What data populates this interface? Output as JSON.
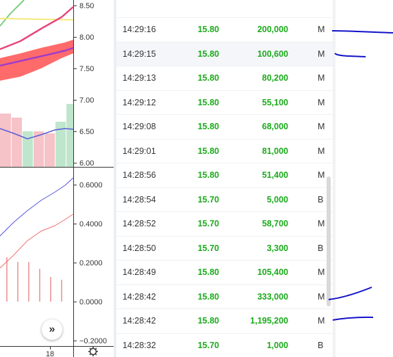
{
  "chart": {
    "price_axis": [
      "8.50",
      "8.00",
      "7.50",
      "7.00",
      "6.50",
      "6.00"
    ],
    "indicator_axis": [
      "0.6000",
      "0.4000",
      "0.2000",
      "0.0000",
      "−0.2000"
    ],
    "time_axis_label": "18",
    "expand_icon": "»",
    "settings_icon": "gear-icon",
    "colors": {
      "green_line": "#7ccd7c",
      "yellow_line": "#f5e87a",
      "pink_line": "#e8457c",
      "purple_line": "#a03cc8",
      "cloud_fill": "#ff6b6b",
      "volume_pink": "#f5c3c8",
      "volume_green": "#bfe6cc",
      "blue_line": "#5a5ad8",
      "macd_line": "#5050e0",
      "signal_line": "#f07070",
      "histogram": "#e05050"
    }
  },
  "trades": [
    {
      "time": "14:29:16",
      "price": "15.80",
      "qty": "200,000",
      "side": "M"
    },
    {
      "time": "14:29:15",
      "price": "15.80",
      "qty": "100,600",
      "side": "M"
    },
    {
      "time": "14:29:13",
      "price": "15.80",
      "qty": "80,200",
      "side": "M"
    },
    {
      "time": "14:29:12",
      "price": "15.80",
      "qty": "55,100",
      "side": "M"
    },
    {
      "time": "14:29:08",
      "price": "15.80",
      "qty": "68,000",
      "side": "M"
    },
    {
      "time": "14:29:01",
      "price": "15.80",
      "qty": "81,000",
      "side": "M"
    },
    {
      "time": "14:28:56",
      "price": "15.80",
      "qty": "51,400",
      "side": "M"
    },
    {
      "time": "14:28:54",
      "price": "15.70",
      "qty": "5,000",
      "side": "B"
    },
    {
      "time": "14:28:52",
      "price": "15.70",
      "qty": "58,700",
      "side": "M"
    },
    {
      "time": "14:28:50",
      "price": "15.70",
      "qty": "3,300",
      "side": "B"
    },
    {
      "time": "14:28:49",
      "price": "15.80",
      "qty": "105,400",
      "side": "M"
    },
    {
      "time": "14:28:42",
      "price": "15.80",
      "qty": "333,000",
      "side": "M"
    },
    {
      "time": "14:28:42",
      "price": "15.80",
      "qty": "1,195,200",
      "side": "M"
    },
    {
      "time": "14:28:32",
      "price": "15.70",
      "qty": "1,000",
      "side": "B"
    }
  ],
  "highlighted_row": 1,
  "annotation_color": "#1010c8"
}
